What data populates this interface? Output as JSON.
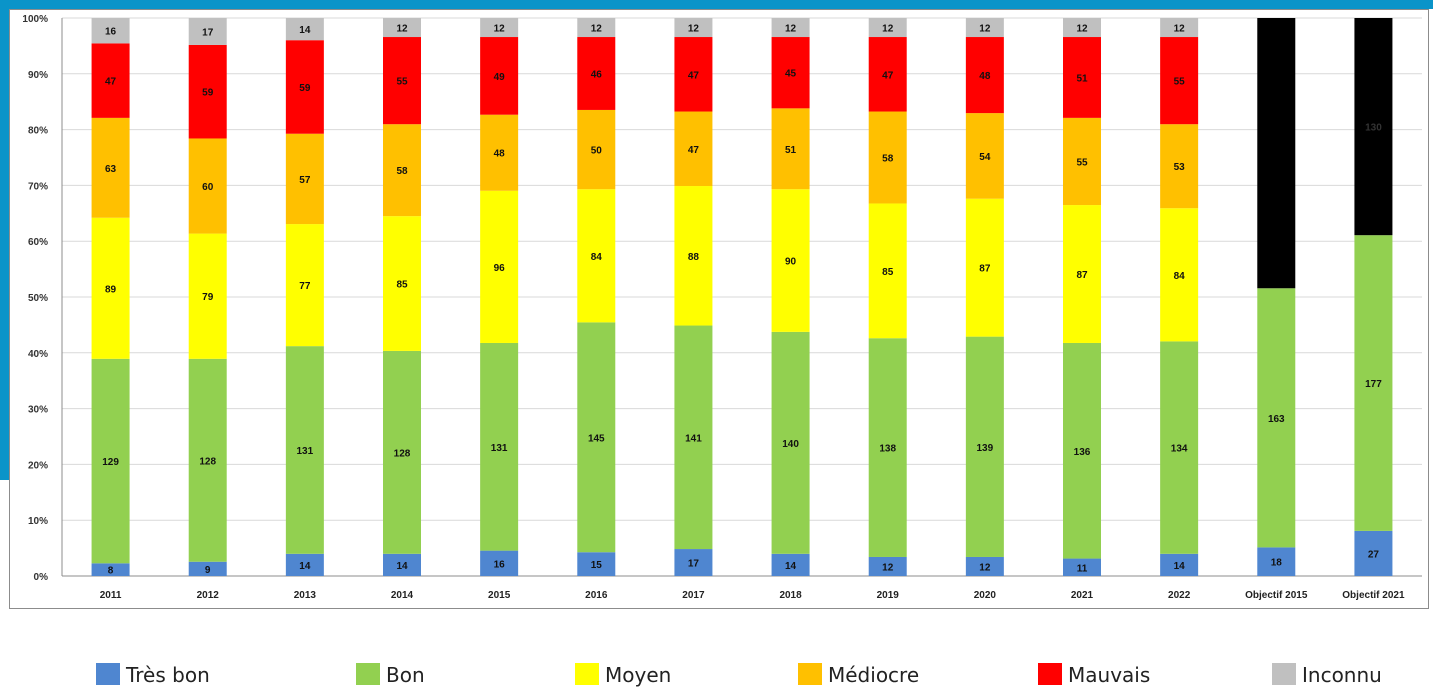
{
  "chart_data": {
    "type": "bar",
    "stacked": true,
    "normalized": true,
    "categories": [
      "2011",
      "2012",
      "2013",
      "2014",
      "2015",
      "2016",
      "2017",
      "2018",
      "2019",
      "2020",
      "2021",
      "2022",
      "Objectif 2015",
      "Objectif 2021"
    ],
    "y_ticks": [
      "0%",
      "10%",
      "20%",
      "30%",
      "40%",
      "50%",
      "60%",
      "70%",
      "80%",
      "90%",
      "100%"
    ],
    "ylim": [
      0,
      100
    ],
    "grid": true,
    "legend_position": "bottom",
    "series": [
      {
        "name": "Très bon",
        "color": "#4f86d0",
        "values": [
          8,
          9,
          14,
          14,
          16,
          15,
          17,
          14,
          12,
          12,
          11,
          14,
          18,
          27
        ]
      },
      {
        "name": "Bon",
        "color": "#92d050",
        "values": [
          129,
          128,
          131,
          128,
          131,
          145,
          141,
          140,
          138,
          139,
          136,
          134,
          163,
          177
        ]
      },
      {
        "name": "Moyen",
        "color": "#ffff00",
        "values": [
          89,
          79,
          77,
          85,
          96,
          84,
          88,
          90,
          85,
          87,
          87,
          84,
          null,
          null
        ]
      },
      {
        "name": "Médiocre",
        "color": "#ffc000",
        "values": [
          63,
          60,
          57,
          58,
          48,
          50,
          47,
          51,
          58,
          54,
          55,
          53,
          null,
          null
        ]
      },
      {
        "name": "Mauvais",
        "color": "#ff0000",
        "values": [
          47,
          59,
          59,
          55,
          49,
          46,
          47,
          45,
          47,
          48,
          51,
          55,
          null,
          null
        ]
      },
      {
        "name": "Inconnu",
        "color": "#c0c0c0",
        "values": [
          16,
          17,
          14,
          12,
          12,
          12,
          12,
          12,
          12,
          12,
          12,
          12,
          null,
          null
        ]
      },
      {
        "name": "",
        "color": "#000000",
        "values": [
          null,
          null,
          null,
          null,
          null,
          null,
          null,
          null,
          null,
          null,
          null,
          null,
          170,
          130
        ]
      }
    ],
    "black_segment_label": "130"
  },
  "legend": [
    {
      "label": "Très bon",
      "color": "#4f86d0"
    },
    {
      "label": "Bon",
      "color": "#92d050"
    },
    {
      "label": "Moyen",
      "color": "#ffff00"
    },
    {
      "label": "Médiocre",
      "color": "#ffc000"
    },
    {
      "label": "Mauvais",
      "color": "#ff0000"
    },
    {
      "label": "Inconnu",
      "color": "#c0c0c0"
    }
  ],
  "colors": {
    "accent": "#0a94c9"
  }
}
